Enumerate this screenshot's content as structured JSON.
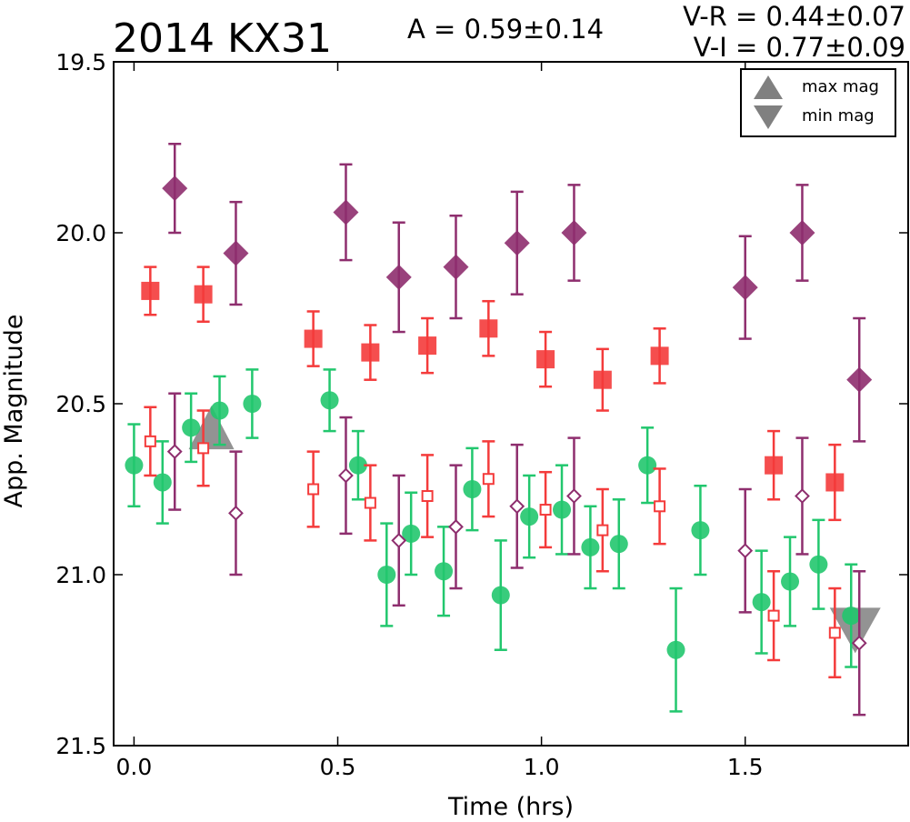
{
  "chart_data": {
    "type": "scatter",
    "title": "2014 KX31",
    "annotations": {
      "amplitude": "A  = 0.59±0.14",
      "v_r": "V-R = 0.44±0.07",
      "v_i": "V-I  = 0.77±0.09"
    },
    "xlabel": "Time (hrs)",
    "ylabel": "App. Magnitude",
    "xlim": [
      -0.05,
      1.9
    ],
    "ylim": [
      21.5,
      19.5
    ],
    "y_inverted": true,
    "grid": false,
    "xticks": [
      "0.0",
      "0.5",
      "1.0",
      "1.5"
    ],
    "yticks": [
      "19.5",
      "20.0",
      "20.5",
      "21.0",
      "21.5"
    ],
    "legend": {
      "placement": "top-right",
      "entries": [
        {
          "label": "max mag",
          "marker": "triangle-up",
          "color": "#808080"
        },
        {
          "label": "min mag",
          "marker": "triangle-down",
          "color": "#808080"
        }
      ]
    },
    "series": [
      {
        "key": "green_circles",
        "marker": "circle-filled",
        "color": "#22c76e",
        "points": [
          {
            "x": 0.0,
            "y": 20.68,
            "err": 0.12
          },
          {
            "x": 0.07,
            "y": 20.73,
            "err": 0.12
          },
          {
            "x": 0.14,
            "y": 20.57,
            "err": 0.1
          },
          {
            "x": 0.21,
            "y": 20.52,
            "err": 0.1
          },
          {
            "x": 0.29,
            "y": 20.5,
            "err": 0.1
          },
          {
            "x": 0.48,
            "y": 20.49,
            "err": 0.09
          },
          {
            "x": 0.55,
            "y": 20.68,
            "err": 0.1
          },
          {
            "x": 0.62,
            "y": 21.0,
            "err": 0.15
          },
          {
            "x": 0.68,
            "y": 20.88,
            "err": 0.12
          },
          {
            "x": 0.76,
            "y": 20.99,
            "err": 0.13
          },
          {
            "x": 0.83,
            "y": 20.75,
            "err": 0.12
          },
          {
            "x": 0.9,
            "y": 21.06,
            "err": 0.16
          },
          {
            "x": 0.97,
            "y": 20.83,
            "err": 0.12
          },
          {
            "x": 1.05,
            "y": 20.81,
            "err": 0.13
          },
          {
            "x": 1.12,
            "y": 20.92,
            "err": 0.12
          },
          {
            "x": 1.19,
            "y": 20.91,
            "err": 0.13
          },
          {
            "x": 1.26,
            "y": 20.68,
            "err": 0.11
          },
          {
            "x": 1.33,
            "y": 21.22,
            "err": 0.18
          },
          {
            "x": 1.39,
            "y": 20.87,
            "err": 0.13
          },
          {
            "x": 1.54,
            "y": 21.08,
            "err": 0.15
          },
          {
            "x": 1.61,
            "y": 21.02,
            "err": 0.13
          },
          {
            "x": 1.68,
            "y": 20.97,
            "err": 0.13
          },
          {
            "x": 1.76,
            "y": 21.12,
            "err": 0.15
          }
        ]
      },
      {
        "key": "red_filled_squares",
        "marker": "square-filled",
        "color": "#f43b3b",
        "points": [
          {
            "x": 0.04,
            "y": 20.17,
            "err": 0.07
          },
          {
            "x": 0.17,
            "y": 20.18,
            "err": 0.08
          },
          {
            "x": 0.44,
            "y": 20.31,
            "err": 0.08
          },
          {
            "x": 0.58,
            "y": 20.35,
            "err": 0.08
          },
          {
            "x": 0.72,
            "y": 20.33,
            "err": 0.08
          },
          {
            "x": 0.87,
            "y": 20.28,
            "err": 0.08
          },
          {
            "x": 1.01,
            "y": 20.37,
            "err": 0.08
          },
          {
            "x": 1.15,
            "y": 20.43,
            "err": 0.09
          },
          {
            "x": 1.29,
            "y": 20.36,
            "err": 0.08
          },
          {
            "x": 1.57,
            "y": 20.68,
            "err": 0.1
          },
          {
            "x": 1.72,
            "y": 20.73,
            "err": 0.11
          }
        ]
      },
      {
        "key": "red_open_squares",
        "marker": "square-open",
        "color": "#f43b3b",
        "points": [
          {
            "x": 0.04,
            "y": 20.61,
            "err": 0.1
          },
          {
            "x": 0.17,
            "y": 20.63,
            "err": 0.11
          },
          {
            "x": 0.44,
            "y": 20.75,
            "err": 0.11
          },
          {
            "x": 0.58,
            "y": 20.79,
            "err": 0.11
          },
          {
            "x": 0.72,
            "y": 20.77,
            "err": 0.12
          },
          {
            "x": 0.87,
            "y": 20.72,
            "err": 0.11
          },
          {
            "x": 1.01,
            "y": 20.81,
            "err": 0.11
          },
          {
            "x": 1.15,
            "y": 20.87,
            "err": 0.12
          },
          {
            "x": 1.29,
            "y": 20.8,
            "err": 0.11
          },
          {
            "x": 1.57,
            "y": 21.12,
            "err": 0.13
          },
          {
            "x": 1.72,
            "y": 21.17,
            "err": 0.13
          }
        ]
      },
      {
        "key": "purple_filled_diamonds",
        "marker": "diamond-filled",
        "color": "#8e2e6e",
        "points": [
          {
            "x": 0.1,
            "y": 19.87,
            "err": 0.13
          },
          {
            "x": 0.25,
            "y": 20.06,
            "err": 0.15
          },
          {
            "x": 0.52,
            "y": 19.94,
            "err": 0.14
          },
          {
            "x": 0.65,
            "y": 20.13,
            "err": 0.16
          },
          {
            "x": 0.79,
            "y": 20.1,
            "err": 0.15
          },
          {
            "x": 0.94,
            "y": 20.03,
            "err": 0.15
          },
          {
            "x": 1.08,
            "y": 20.0,
            "err": 0.14
          },
          {
            "x": 1.5,
            "y": 20.16,
            "err": 0.15
          },
          {
            "x": 1.64,
            "y": 20.0,
            "err": 0.14
          },
          {
            "x": 1.78,
            "y": 20.43,
            "err": 0.18
          }
        ]
      },
      {
        "key": "purple_open_diamonds",
        "marker": "diamond-open",
        "color": "#8e2e6e",
        "points": [
          {
            "x": 0.1,
            "y": 20.64,
            "err": 0.17
          },
          {
            "x": 0.25,
            "y": 20.82,
            "err": 0.18
          },
          {
            "x": 0.52,
            "y": 20.71,
            "err": 0.17
          },
          {
            "x": 0.65,
            "y": 20.9,
            "err": 0.19
          },
          {
            "x": 0.79,
            "y": 20.86,
            "err": 0.18
          },
          {
            "x": 0.94,
            "y": 20.8,
            "err": 0.18
          },
          {
            "x": 1.08,
            "y": 20.77,
            "err": 0.17
          },
          {
            "x": 1.5,
            "y": 20.93,
            "err": 0.18
          },
          {
            "x": 1.64,
            "y": 20.77,
            "err": 0.17
          },
          {
            "x": 1.78,
            "y": 21.2,
            "err": 0.21
          }
        ]
      },
      {
        "key": "max_mag",
        "marker": "triangle-up",
        "color": "#808080",
        "points": [
          {
            "x": 0.19,
            "y": 20.58
          }
        ]
      },
      {
        "key": "min_mag",
        "marker": "triangle-down",
        "color": "#808080",
        "points": [
          {
            "x": 1.77,
            "y": 21.15
          }
        ]
      }
    ]
  }
}
